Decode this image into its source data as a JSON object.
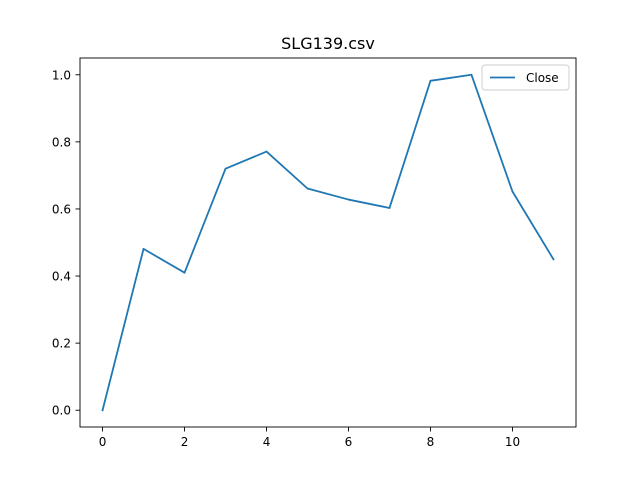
{
  "chart_data": {
    "type": "line",
    "title": "SLG139.csv",
    "xlabel": "",
    "ylabel": "",
    "x": [
      0,
      1,
      2,
      3,
      4,
      5,
      6,
      7,
      8,
      9,
      10,
      11
    ],
    "series": [
      {
        "name": "Close",
        "color": "#1f77b4",
        "values": [
          0.0,
          0.481,
          0.41,
          0.72,
          0.771,
          0.661,
          0.628,
          0.603,
          0.982,
          1.0,
          0.652,
          0.45
        ]
      }
    ],
    "xlim": [
      -0.55,
      11.55
    ],
    "ylim": [
      -0.05,
      1.05
    ],
    "xticks": [
      0,
      2,
      4,
      6,
      8,
      10
    ],
    "xtick_labels": [
      "0",
      "2",
      "4",
      "6",
      "8",
      "10"
    ],
    "yticks": [
      0.0,
      0.2,
      0.4,
      0.6,
      0.8,
      1.0
    ],
    "ytick_labels": [
      "0.0",
      "0.2",
      "0.4",
      "0.6",
      "0.8",
      "1.0"
    ],
    "grid": false,
    "legend_position": "upper right"
  }
}
